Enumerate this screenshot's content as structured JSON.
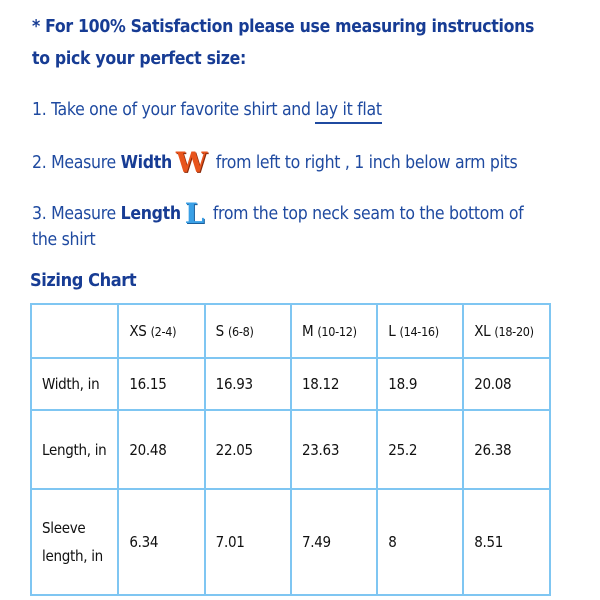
{
  "intro": {
    "line1": "* For 100% Satisfaction please use measuring instructions",
    "line2": "to pick your perfect size:"
  },
  "steps": [
    {
      "prefix": "1. Take one of your favorite shirt and ",
      "link": "lay it flat"
    },
    {
      "prefix": "2. Measure ",
      "bold": "Width",
      "glyph": "W",
      "suffix": " from left to right , 1 inch below arm pits"
    },
    {
      "prefix": "3. Measure ",
      "bold": "Length",
      "glyph": "L",
      "suffix": " from the top neck seam to the bottom of",
      "cont": "the shirt"
    }
  ],
  "colors": {
    "text": "#1f4aa0",
    "border": "#7fc6f2",
    "w_icon": "#e8541c",
    "l_icon": "#3aa0e6"
  },
  "table": {
    "title": "Sizing Chart",
    "headers": [
      {
        "size": "XS",
        "range": "(2-4)"
      },
      {
        "size": "S",
        "range": "(6-8)"
      },
      {
        "size": "M",
        "range": "(10-12)"
      },
      {
        "size": "L",
        "range": "(14-16)"
      },
      {
        "size": "XL",
        "range": "(18-20)"
      }
    ],
    "rows": [
      {
        "label": "Width, in",
        "values": [
          "16.15",
          "16.93",
          "18.12",
          "18.9",
          "20.08"
        ]
      },
      {
        "label": "Length, in",
        "values": [
          "20.48",
          "22.05",
          "23.63",
          "25.2",
          "26.38"
        ]
      },
      {
        "label": "Sleeve length, in",
        "values": [
          "6.34",
          "7.01",
          "7.49",
          "8",
          "8.51"
        ]
      }
    ]
  }
}
